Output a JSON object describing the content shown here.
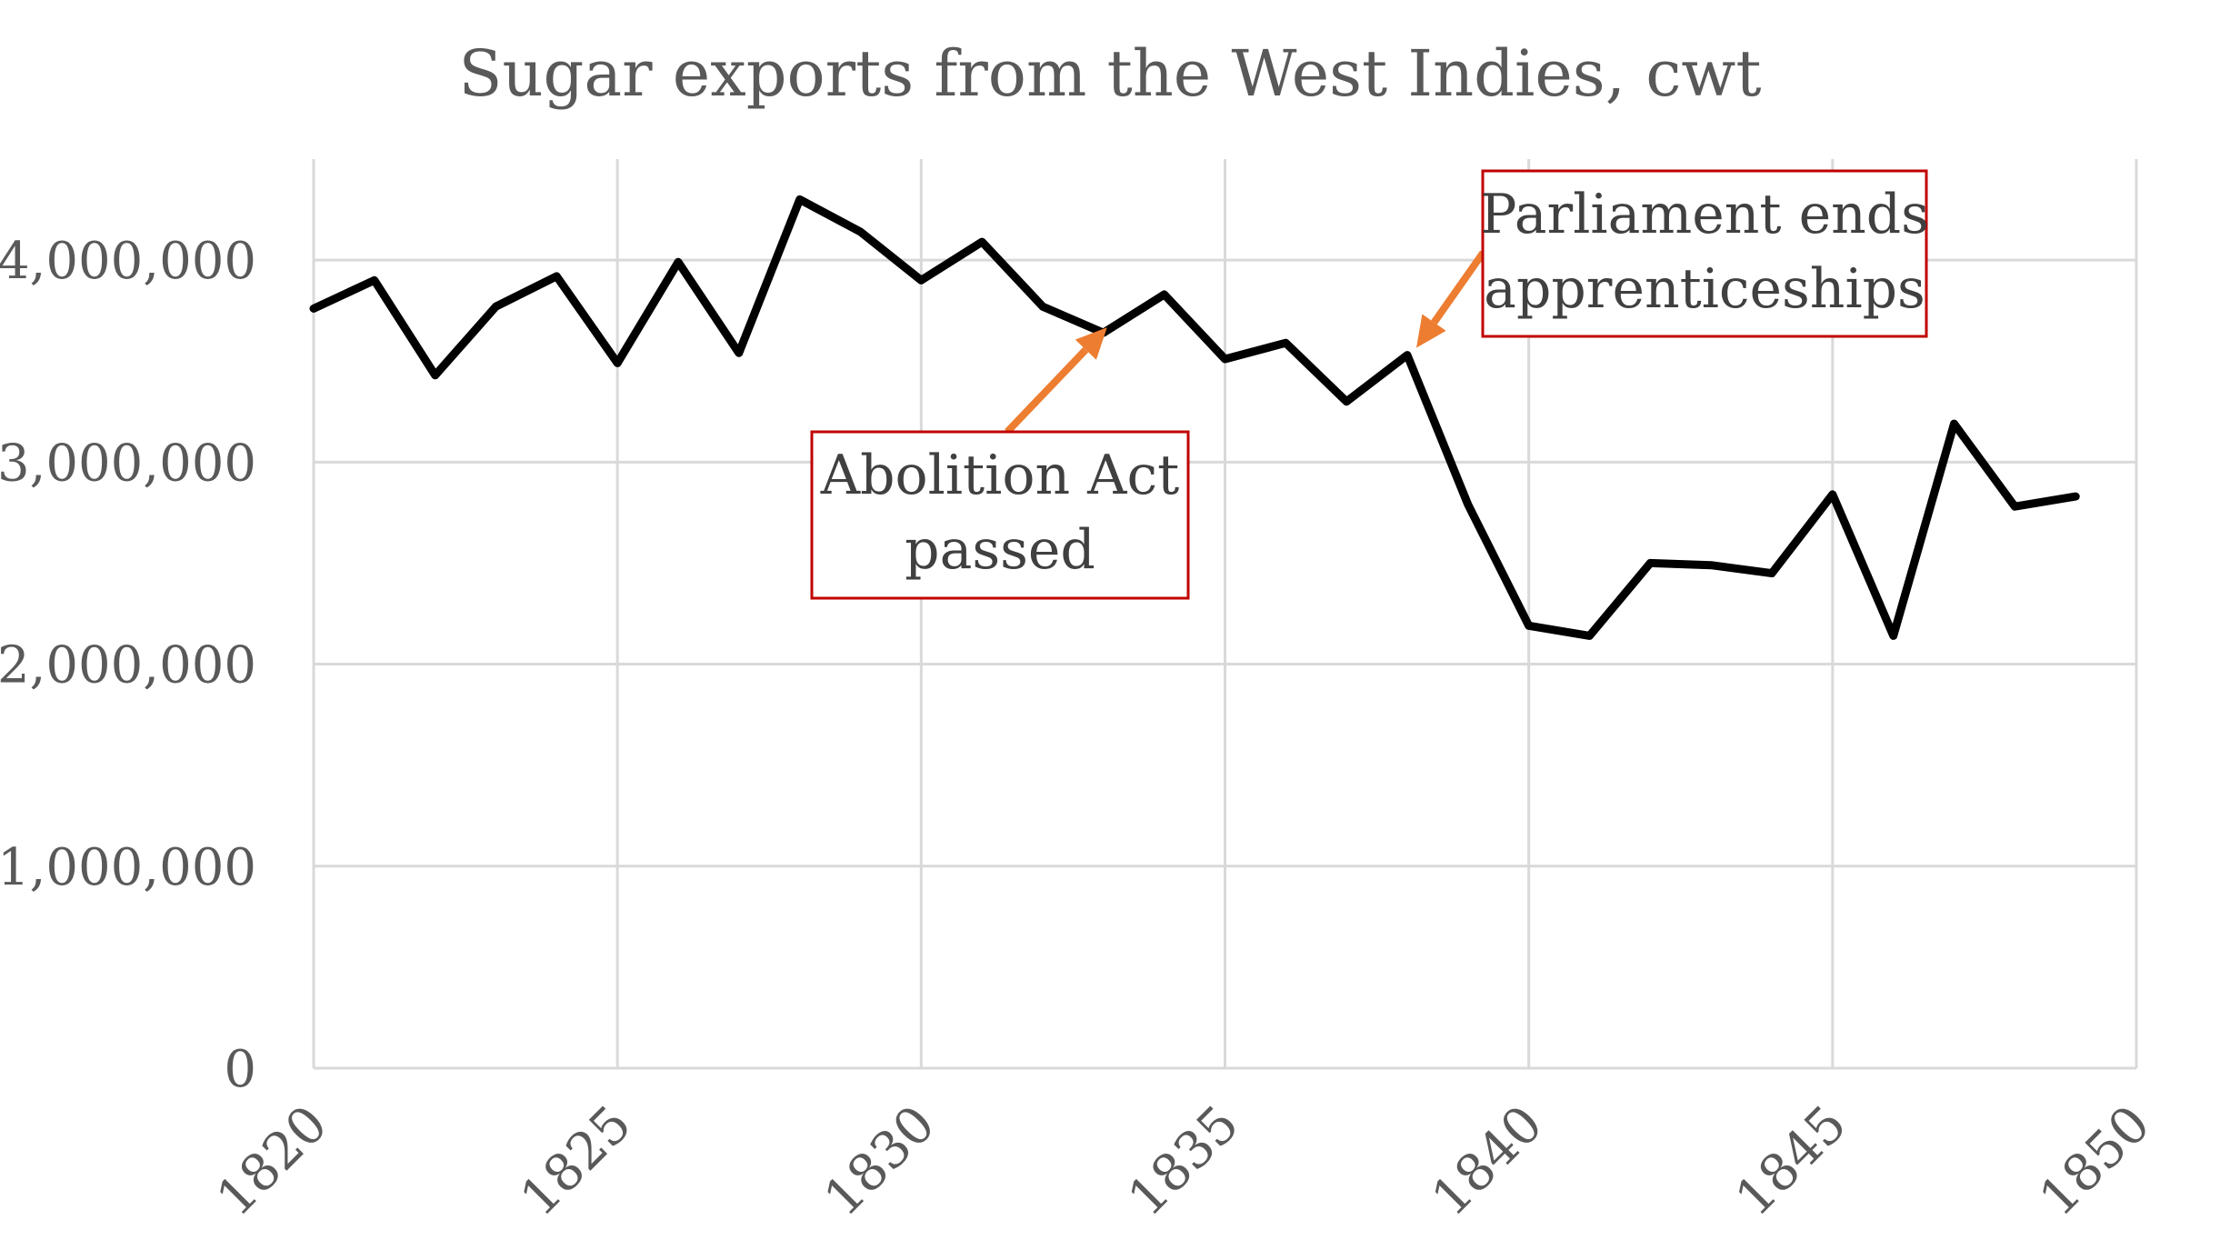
{
  "chart_data": {
    "type": "line",
    "title": "Sugar exports from the West Indies, cwt",
    "xlabel": "",
    "ylabel": "",
    "xlim": [
      1820,
      1850
    ],
    "ylim": [
      0,
      4500000
    ],
    "x_ticks": [
      "1820",
      "1825",
      "1830",
      "1835",
      "1840",
      "1845",
      "1850"
    ],
    "y_ticks": [
      "0",
      "1,000,000",
      "2,000,000",
      "3,000,000",
      "4,000,000"
    ],
    "grid": true,
    "colors": {
      "line": "#000000",
      "annotation_border": "#c00000",
      "arrow": "#ed7d31",
      "grid": "#d9d9d9",
      "text": "#595959"
    },
    "series": [
      {
        "name": "Sugar exports",
        "x": [
          1820,
          1821,
          1822,
          1823,
          1824,
          1825,
          1826,
          1827,
          1828,
          1829,
          1830,
          1831,
          1832,
          1833,
          1834,
          1835,
          1836,
          1837,
          1838,
          1839,
          1840,
          1841,
          1842,
          1843,
          1844,
          1845,
          1846,
          1847,
          1848,
          1849
        ],
        "values": [
          3760000,
          3900000,
          3430000,
          3770000,
          3920000,
          3490000,
          3990000,
          3540000,
          4300000,
          4140000,
          3900000,
          4090000,
          3770000,
          3640000,
          3830000,
          3510000,
          3590000,
          3300000,
          3530000,
          2790000,
          2190000,
          2140000,
          2500000,
          2490000,
          2450000,
          2840000,
          2140000,
          3190000,
          2780000,
          2830000
        ]
      }
    ],
    "annotations": [
      {
        "lines": [
          "Abolition Act",
          "passed"
        ],
        "target_x": 1833,
        "target_y": 3640000
      },
      {
        "lines": [
          "Parliament ends",
          "apprenticeships"
        ],
        "target_x": 1838,
        "target_y": 3530000
      }
    ]
  }
}
